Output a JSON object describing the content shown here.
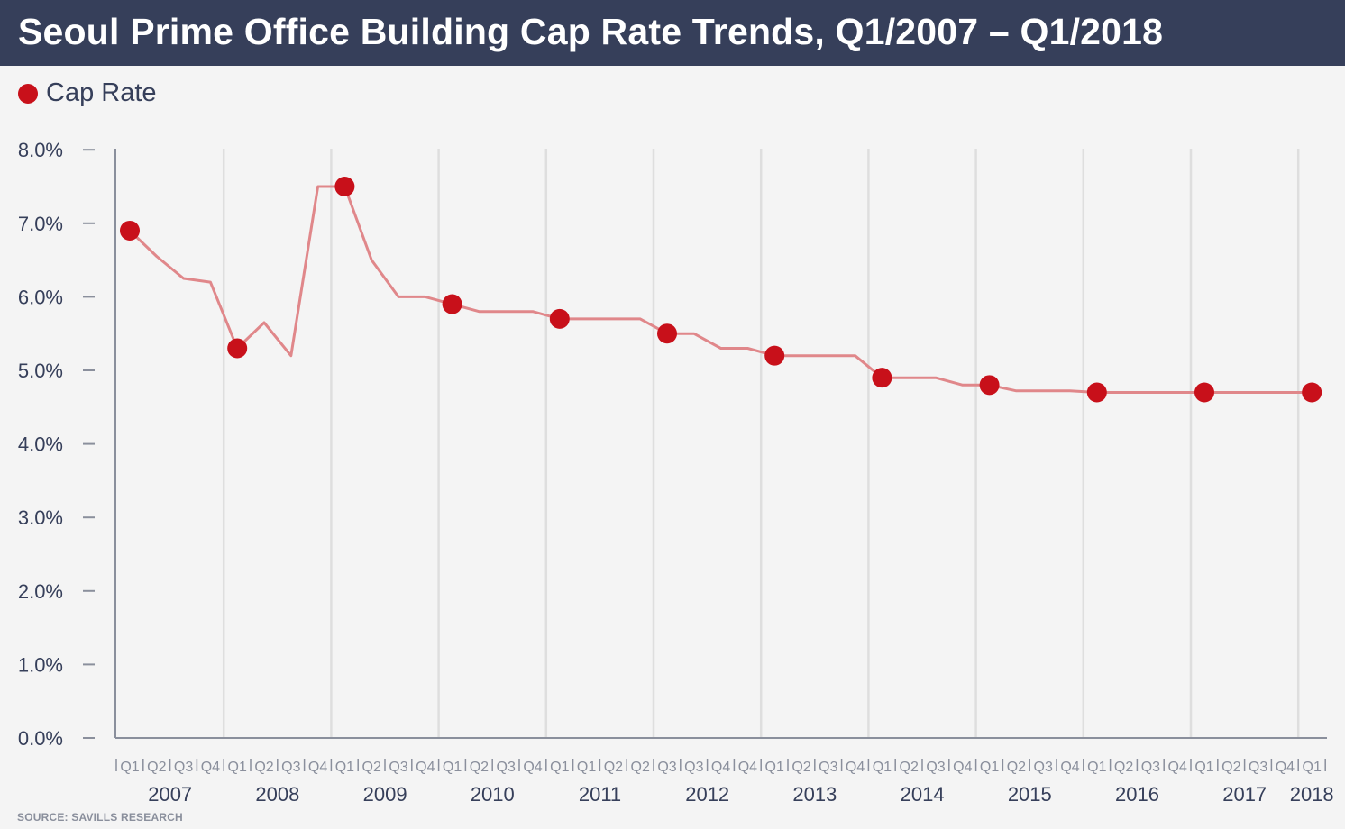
{
  "title": "Seoul Prime Office Building Cap Rate Trends, Q1/2007 – Q1/2018",
  "source": "SOURCE: SAVILLS RESEARCH",
  "colors": {
    "header_bg": "#363f5a",
    "line": "#e0878a",
    "marker": "#c8101a",
    "grid": "#dedede",
    "axis": "#8a8f9c",
    "text": "#363f5a"
  },
  "chart_data": {
    "type": "line",
    "title": "Seoul Prime Office Building Cap Rate Trends, Q1/2007 – Q1/2018",
    "xlabel": "",
    "ylabel": "",
    "ylim": [
      0,
      8
    ],
    "yticks": [
      "0.0%",
      "1.0%",
      "2.0%",
      "3.0%",
      "4.0%",
      "5.0%",
      "6.0%",
      "7.0%",
      "8.0%"
    ],
    "grid": "vertical lines at each Q1",
    "legend": {
      "position": "top-left",
      "entries": [
        "Cap Rate"
      ]
    },
    "quarter_labels": [
      "Q1",
      "Q2",
      "Q3",
      "Q4",
      "Q1",
      "Q2",
      "Q3",
      "Q4",
      "Q1",
      "Q2",
      "Q3",
      "Q4",
      "Q1",
      "Q2",
      "Q3",
      "Q4",
      "Q1",
      "Q1",
      "Q2",
      "Q2",
      "Q3",
      "Q3",
      "Q4",
      "Q4",
      "Q1",
      "Q2",
      "Q3",
      "Q4",
      "Q1",
      "Q2",
      "Q3",
      "Q4",
      "Q1",
      "Q2",
      "Q3",
      "Q4",
      "Q1",
      "Q2",
      "Q3",
      "Q4",
      "Q1",
      "Q2",
      "Q3",
      "Q4",
      "Q1"
    ],
    "years": [
      {
        "label": "2007",
        "q_index": 1.5
      },
      {
        "label": "2008",
        "q_index": 5.5
      },
      {
        "label": "2009",
        "q_index": 9.5
      },
      {
        "label": "2010",
        "q_index": 13.5
      },
      {
        "label": "2011",
        "q_index": 17.5
      },
      {
        "label": "2012",
        "q_index": 21.5
      },
      {
        "label": "2013",
        "q_index": 25.5
      },
      {
        "label": "2014",
        "q_index": 29.5
      },
      {
        "label": "2015",
        "q_index": 33.5
      },
      {
        "label": "2016",
        "q_index": 37.5
      },
      {
        "label": "2017",
        "q_index": 41.5
      },
      {
        "label": "2018",
        "q_index": 44
      }
    ],
    "series": [
      {
        "name": "Cap Rate",
        "values": [
          6.9,
          6.55,
          6.25,
          6.2,
          5.3,
          5.65,
          5.2,
          7.5,
          7.5,
          6.5,
          6.0,
          6.0,
          5.9,
          5.8,
          5.8,
          5.8,
          5.7,
          5.7,
          5.7,
          5.7,
          5.5,
          5.5,
          5.3,
          5.3,
          5.2,
          5.2,
          5.2,
          5.2,
          4.9,
          4.9,
          4.9,
          4.8,
          4.8,
          4.72,
          4.72,
          4.72,
          4.7,
          4.7,
          4.7,
          4.7,
          4.7,
          4.7,
          4.7,
          4.7,
          4.7
        ],
        "marker_indices": [
          0,
          4,
          8,
          12,
          16,
          20,
          24,
          28,
          32,
          36,
          40,
          44
        ]
      }
    ]
  }
}
